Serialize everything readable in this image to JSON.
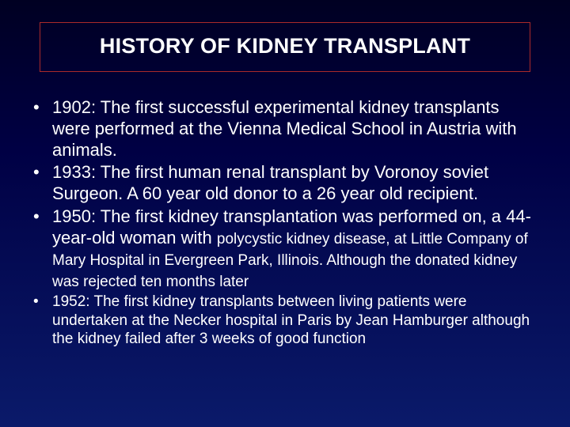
{
  "title": "HISTORY OF KIDNEY TRANSPLANT",
  "bullets": [
    {
      "size": "large",
      "text": "1902:  The first successful experimental kidney transplants were performed at the Vienna Medical School in Austria with animals."
    },
    {
      "size": "large",
      "text": "1933: The first human renal transplant by Voronoy soviet Surgeon. A 60 year old donor to a 26 year old recipient."
    },
    {
      "size": "mixed",
      "text": "1950: The first kidney transplantation was performed on, a 44-year-old woman with ",
      "tail": "polycystic kidney disease, at Little Company of Mary Hospital in Evergreen Park, Illinois. Although the donated kidney was rejected ten months later"
    },
    {
      "size": "small",
      "text": "1952: The first kidney transplants between living patients were undertaken at the Necker hospital in Paris by Jean Hamburger although the kidney failed after 3 weeks of good function"
    }
  ],
  "colors": {
    "text": "#ffffff",
    "border": "#aa2a2a",
    "bg_top": "#000022",
    "bg_bottom": "#0a1a6a"
  },
  "fonts": {
    "title_pt": 27,
    "large_pt": 22,
    "small_pt": 19
  }
}
